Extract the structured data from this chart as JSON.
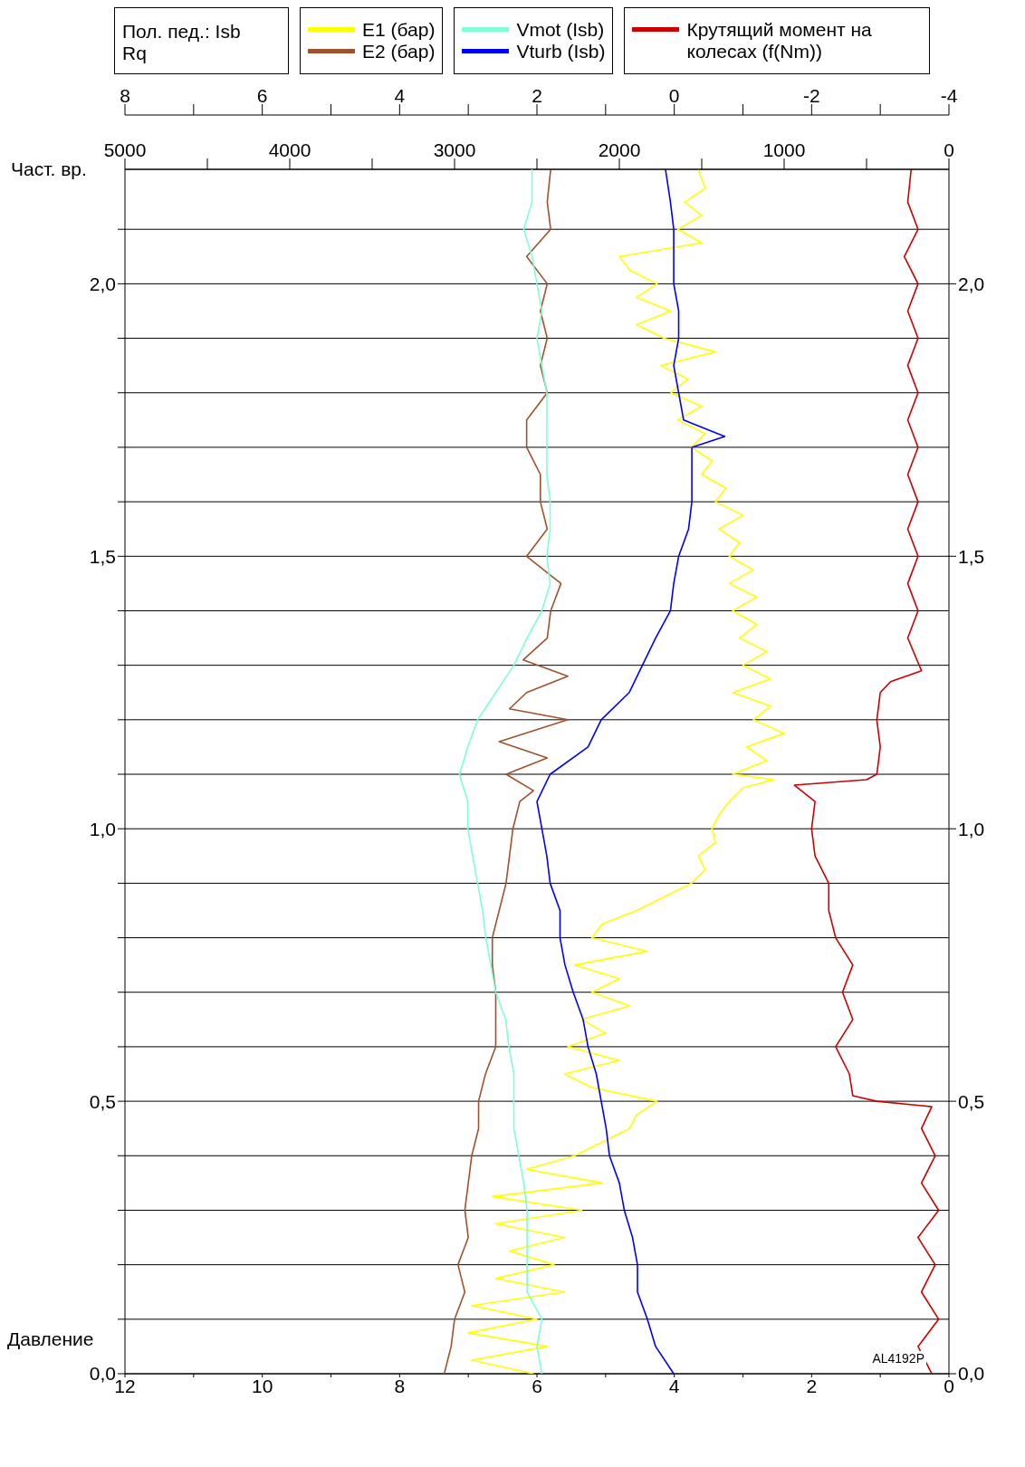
{
  "chart_data": [
    {
      "type": "line",
      "orientation": "horizontal",
      "xlabel": "Давление",
      "ylabel": "Част. вр.",
      "legend_title": "Пол. пед.: Isb\nRq",
      "legend": "top",
      "grid": "y",
      "marker": "none",
      "annotations": [
        "AL4192P"
      ],
      "ylim": [
        0,
        2.21
      ],
      "yticks": [
        {
          "value": 0,
          "label": "0,0"
        },
        {
          "value": 0.1,
          "label": null
        },
        {
          "value": 0.2,
          "label": null
        },
        {
          "value": 0.3,
          "label": null
        },
        {
          "value": 0.4,
          "label": null
        },
        {
          "value": 0.5,
          "label": "0,5"
        },
        {
          "value": 0.6,
          "label": null
        },
        {
          "value": 0.7,
          "label": null
        },
        {
          "value": 0.8,
          "label": null
        },
        {
          "value": 0.9,
          "label": null
        },
        {
          "value": 1.0,
          "label": "1,0"
        },
        {
          "value": 1.1,
          "label": null
        },
        {
          "value": 1.2,
          "label": null
        },
        {
          "value": 1.3,
          "label": null
        },
        {
          "value": 1.4,
          "label": null
        },
        {
          "value": 1.5,
          "label": "1,5"
        },
        {
          "value": 1.6,
          "label": null
        },
        {
          "value": 1.7,
          "label": null
        },
        {
          "value": 1.8,
          "label": null
        },
        {
          "value": 1.9,
          "label": null
        },
        {
          "value": 2.0,
          "label": "2,0"
        },
        {
          "value": 2.1,
          "label": null
        }
      ],
      "y2lim": [
        0,
        2.21
      ],
      "y2ticks": [
        {
          "value": 0,
          "label": "0,0"
        },
        {
          "value": 0.5,
          "label": "0,5"
        },
        {
          "value": 1.0,
          "label": "1,0"
        },
        {
          "value": 1.5,
          "label": "1,5"
        },
        {
          "value": 2.0,
          "label": "2,0"
        }
      ],
      "xlim": [
        12,
        0
      ],
      "xticks": [
        12,
        {
          "value": 11,
          "label": null
        },
        10,
        {
          "value": 9,
          "label": null
        },
        8,
        {
          "value": 7,
          "label": null
        },
        6,
        {
          "value": 5,
          "label": null
        },
        4,
        {
          "value": 3,
          "label": null
        },
        2,
        {
          "value": 1,
          "label": null
        },
        0
      ],
      "x2lim": [
        8,
        -4
      ],
      "x2ticks": [
        8,
        {
          "value": 7,
          "label": null
        },
        6,
        {
          "value": 5,
          "label": null
        },
        4,
        {
          "value": 3,
          "label": null
        },
        2,
        {
          "value": 1,
          "label": null
        },
        0,
        {
          "value": -1,
          "label": null
        },
        -2,
        {
          "value": -3,
          "label": null
        },
        -4
      ],
      "series": [
        {
          "name": "E1 (бар)",
          "color": "#ffff00",
          "x": [
            0,
            0.025,
            0.05,
            0.075,
            0.1,
            0.125,
            0.15,
            0.175,
            0.2,
            0.225,
            0.25,
            0.275,
            0.3,
            0.325,
            0.35,
            0.375,
            0.4,
            0.425,
            0.45,
            0.475,
            0.5,
            0.525,
            0.55,
            0.575,
            0.6,
            0.625,
            0.65,
            0.675,
            0.7,
            0.725,
            0.75,
            0.775,
            0.8,
            0.825,
            0.85,
            0.875,
            0.9,
            0.925,
            0.95,
            0.975,
            1.0,
            1.025,
            1.05,
            1.075,
            1.09,
            1.1,
            1.125,
            1.15,
            1.175,
            1.2,
            1.225,
            1.25,
            1.275,
            1.3,
            1.325,
            1.35,
            1.375,
            1.4,
            1.425,
            1.45,
            1.475,
            1.5,
            1.525,
            1.55,
            1.575,
            1.6,
            1.625,
            1.65,
            1.675,
            1.7,
            1.725,
            1.75,
            1.775,
            1.8,
            1.825,
            1.85,
            1.875,
            1.9,
            1.925,
            1.95,
            1.975,
            2.0,
            2.025,
            2.05,
            2.075,
            2.1,
            2.125,
            2.15,
            2.175,
            2.21
          ],
          "values": [
            6.05,
            6.95,
            5.85,
            7.0,
            6.0,
            6.95,
            5.6,
            6.6,
            5.75,
            6.4,
            5.6,
            6.6,
            5.35,
            6.65,
            5.05,
            6.15,
            5.45,
            5.05,
            4.65,
            4.55,
            4.25,
            5.2,
            5.6,
            4.8,
            5.55,
            5.0,
            5.35,
            4.65,
            5.2,
            4.8,
            5.45,
            4.4,
            5.2,
            5.05,
            4.55,
            4.15,
            3.75,
            3.55,
            3.65,
            3.4,
            3.45,
            3.35,
            3.2,
            3.0,
            2.55,
            3.15,
            2.65,
            2.95,
            2.4,
            2.85,
            2.6,
            3.15,
            2.6,
            3.0,
            2.65,
            3.05,
            2.8,
            3.15,
            2.8,
            3.2,
            2.85,
            3.2,
            3.05,
            3.35,
            3.0,
            3.4,
            3.25,
            3.6,
            3.45,
            3.75,
            3.55,
            3.95,
            3.6,
            4.05,
            3.8,
            4.2,
            3.4,
            4.15,
            4.55,
            4.05,
            4.55,
            4.25,
            4.65,
            4.8,
            3.6,
            3.95,
            3.6,
            3.85,
            3.55,
            3.65
          ]
        },
        {
          "name": "E2 (бар)",
          "color": "#a0522d",
          "x": [
            0,
            0.05,
            0.1,
            0.15,
            0.2,
            0.25,
            0.3,
            0.35,
            0.4,
            0.45,
            0.5,
            0.55,
            0.6,
            0.65,
            0.7,
            0.75,
            0.8,
            0.85,
            0.9,
            0.95,
            1.0,
            1.05,
            1.07,
            1.1,
            1.13,
            1.16,
            1.2,
            1.22,
            1.25,
            1.28,
            1.31,
            1.35,
            1.4,
            1.45,
            1.5,
            1.55,
            1.6,
            1.65,
            1.7,
            1.75,
            1.8,
            1.85,
            1.9,
            1.95,
            2.0,
            2.05,
            2.1,
            2.15,
            2.21
          ],
          "values": [
            7.35,
            7.25,
            7.2,
            7.05,
            7.15,
            7.0,
            7.05,
            7.0,
            6.95,
            6.85,
            6.85,
            6.75,
            6.6,
            6.6,
            6.6,
            6.65,
            6.65,
            6.55,
            6.45,
            6.4,
            6.35,
            6.25,
            6.05,
            6.45,
            5.85,
            6.55,
            5.55,
            6.4,
            6.15,
            5.55,
            6.2,
            5.85,
            5.8,
            5.65,
            6.15,
            5.85,
            5.95,
            5.95,
            6.15,
            6.15,
            5.85,
            5.95,
            5.85,
            5.95,
            5.85,
            6.15,
            5.8,
            5.85,
            5.8
          ]
        },
        {
          "name": "Крутящий момент на колесах (f(Nm))",
          "color": "#cc0000",
          "axis": "x2",
          "x": [
            0,
            0.05,
            0.1,
            0.15,
            0.2,
            0.25,
            0.3,
            0.35,
            0.4,
            0.45,
            0.49,
            0.5,
            0.51,
            0.55,
            0.6,
            0.65,
            0.7,
            0.75,
            0.8,
            0.85,
            0.9,
            0.95,
            1.0,
            1.05,
            1.08,
            1.09,
            1.1,
            1.15,
            1.2,
            1.25,
            1.27,
            1.29,
            1.35,
            1.4,
            1.45,
            1.5,
            1.55,
            1.6,
            1.65,
            1.7,
            1.75,
            1.8,
            1.85,
            1.9,
            1.95,
            2.0,
            2.05,
            2.1,
            2.15,
            2.21
          ],
          "values": [
            -3.75,
            -3.55,
            -3.85,
            -3.6,
            -3.8,
            -3.55,
            -3.85,
            -3.6,
            -3.8,
            -3.6,
            -3.75,
            -2.95,
            -2.6,
            -2.55,
            -2.35,
            -2.6,
            -2.45,
            -2.6,
            -2.35,
            -2.25,
            -2.25,
            -2.05,
            -2.0,
            -2.05,
            -1.75,
            -2.8,
            -2.95,
            -3.0,
            -2.95,
            -3.0,
            -3.15,
            -3.6,
            -3.4,
            -3.55,
            -3.4,
            -3.55,
            -3.4,
            -3.55,
            -3.4,
            -3.55,
            -3.4,
            -3.55,
            -3.4,
            -3.55,
            -3.4,
            -3.55,
            -3.35,
            -3.55,
            -3.4,
            -3.45
          ]
        }
      ]
    },
    {
      "type": "line",
      "orientation": "horizontal",
      "tick_labels": "x",
      "marker": "none",
      "legend": "top",
      "ylim": [
        0,
        2.21
      ],
      "xlim": [
        5000,
        0
      ],
      "xticks": [
        5000,
        {
          "value": 4500,
          "label": null
        },
        4000,
        {
          "value": 3500,
          "label": null
        },
        3000,
        {
          "value": 2500,
          "label": null
        },
        2000,
        {
          "value": 1500,
          "label": null
        },
        1000,
        {
          "value": 500,
          "label": null
        },
        0
      ],
      "series": [
        {
          "name": "Vmot (Isb)",
          "color": "#7fffd4",
          "x": [
            0,
            0.05,
            0.1,
            0.15,
            0.2,
            0.25,
            0.3,
            0.35,
            0.4,
            0.45,
            0.5,
            0.55,
            0.6,
            0.65,
            0.7,
            0.75,
            0.8,
            0.85,
            0.9,
            0.95,
            1.0,
            1.05,
            1.1,
            1.15,
            1.2,
            1.25,
            1.3,
            1.35,
            1.4,
            1.45,
            1.5,
            1.55,
            1.6,
            1.65,
            1.7,
            1.75,
            1.8,
            1.85,
            1.9,
            1.95,
            2.0,
            2.05,
            2.1,
            2.15,
            2.21
          ],
          "values": [
            2470,
            2500,
            2470,
            2560,
            2560,
            2560,
            2560,
            2580,
            2610,
            2640,
            2640,
            2640,
            2670,
            2690,
            2750,
            2780,
            2810,
            2830,
            2860,
            2890,
            2920,
            2920,
            2970,
            2920,
            2860,
            2750,
            2640,
            2560,
            2470,
            2420,
            2440,
            2420,
            2420,
            2440,
            2440,
            2440,
            2440,
            2470,
            2500,
            2470,
            2500,
            2530,
            2580,
            2530,
            2530
          ]
        },
        {
          "name": "Vturb (Isb)",
          "color": "#0000ff",
          "x": [
            0,
            0.05,
            0.1,
            0.15,
            0.2,
            0.25,
            0.3,
            0.35,
            0.4,
            0.45,
            0.5,
            0.55,
            0.6,
            0.65,
            0.7,
            0.75,
            0.8,
            0.85,
            0.9,
            0.95,
            1.0,
            1.05,
            1.1,
            1.15,
            1.2,
            1.25,
            1.3,
            1.35,
            1.4,
            1.45,
            1.5,
            1.55,
            1.6,
            1.65,
            1.7,
            1.72,
            1.75,
            1.8,
            1.85,
            1.9,
            1.95,
            2.0,
            2.05,
            2.1,
            2.15,
            2.21
          ],
          "values": [
            1670,
            1780,
            1830,
            1890,
            1890,
            1920,
            1970,
            2000,
            2060,
            2080,
            2110,
            2140,
            2190,
            2220,
            2280,
            2330,
            2360,
            2360,
            2420,
            2440,
            2470,
            2500,
            2420,
            2190,
            2110,
            1940,
            1860,
            1780,
            1690,
            1670,
            1640,
            1580,
            1560,
            1560,
            1560,
            1360,
            1610,
            1640,
            1670,
            1640,
            1640,
            1670,
            1670,
            1670,
            1690,
            1720
          ]
        }
      ]
    }
  ]
}
